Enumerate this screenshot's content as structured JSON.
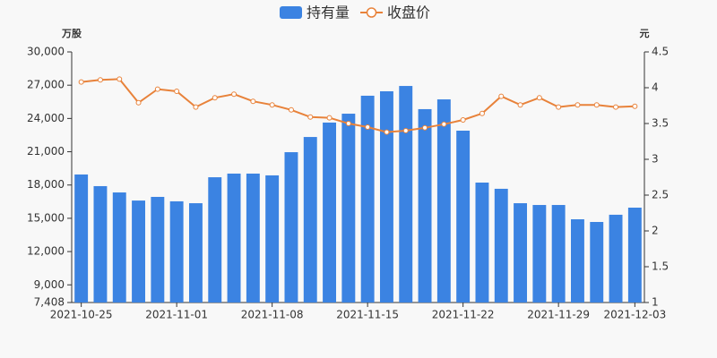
{
  "chart_data": {
    "type": "combo",
    "y_label": "万股",
    "y2_label": "元",
    "categories": [
      "2021-10-25",
      null,
      null,
      null,
      null,
      "2021-11-01",
      null,
      null,
      null,
      null,
      "2021-11-08",
      null,
      null,
      null,
      null,
      "2021-11-15",
      null,
      null,
      null,
      null,
      "2021-11-22",
      null,
      null,
      null,
      null,
      "2021-11-29",
      null,
      null,
      null,
      "2021-12-03"
    ],
    "series": [
      {
        "name": "持有量",
        "type": "bar",
        "color": "#3b83e2",
        "values": [
          18950,
          17900,
          17330,
          16600,
          16930,
          16530,
          16360,
          18700,
          19030,
          19030,
          18870,
          20960,
          22330,
          23630,
          24430,
          26050,
          26450,
          26930,
          24840,
          25720,
          22900,
          18220,
          17660,
          16360,
          16200,
          16200,
          14910,
          14670,
          15320,
          15960
        ]
      },
      {
        "name": "收盘价",
        "type": "line",
        "axis": "y2",
        "color": "#e8823a",
        "values": [
          4.08,
          4.11,
          4.12,
          3.79,
          3.98,
          3.95,
          3.73,
          3.86,
          3.91,
          3.81,
          3.76,
          3.69,
          3.59,
          3.58,
          3.5,
          3.45,
          3.38,
          3.4,
          3.44,
          3.49,
          3.55,
          3.64,
          3.88,
          3.76,
          3.86,
          3.73,
          3.76,
          3.76,
          3.73,
          3.74
        ]
      }
    ],
    "ylim": [
      7408,
      30000
    ],
    "yticks": [
      {
        "value": 7408,
        "label": "7,408"
      },
      {
        "value": 9000,
        "label": "9,000"
      },
      {
        "value": 12000,
        "label": "12,000"
      },
      {
        "value": 15000,
        "label": "15,000"
      },
      {
        "value": 18000,
        "label": "18,000"
      },
      {
        "value": 21000,
        "label": "21,000"
      },
      {
        "value": 24000,
        "label": "24,000"
      },
      {
        "value": 27000,
        "label": "27,000"
      },
      {
        "value": 30000,
        "label": "30,000"
      }
    ],
    "y2lim": [
      1,
      4.5
    ],
    "y2ticks": [
      1,
      1.5,
      2,
      2.5,
      3,
      3.5,
      4,
      4.5
    ],
    "legend": "top"
  }
}
